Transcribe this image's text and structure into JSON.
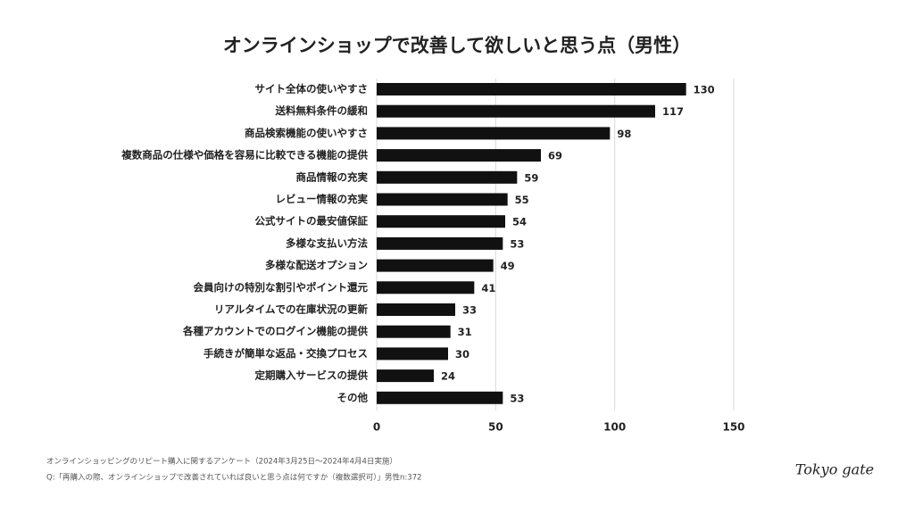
{
  "chart_data": {
    "type": "barh",
    "title": "オンラインショップで改善して欲しいと思う点（男性）",
    "categories": [
      "サイト全体の使いやすさ",
      "送料無料条件の緩和",
      "商品検索機能の使いやすさ",
      "複数商品の仕様や価格を容易に比較できる機能の提供",
      "商品情報の充実",
      "レビュー情報の充実",
      "公式サイトの最安値保証",
      "多様な支払い方法",
      "多様な配送オプション",
      "会員向けの特別な割引やポイント還元",
      "リアルタイムでの在庫状況の更新",
      "各種アカウントでのログイン機能の提供",
      "手続きが簡単な返品・交換プロセス",
      "定期購入サービスの提供",
      "その他"
    ],
    "values": [
      130,
      117,
      98,
      69,
      59,
      55,
      54,
      53,
      49,
      41,
      33,
      31,
      30,
      24,
      53
    ],
    "color": "#111111",
    "xlim": [
      0,
      150
    ],
    "xticks": [
      0,
      50,
      100,
      150
    ],
    "grid": true,
    "notes": [
      "オンラインショッピングのリピート購入に関するアンケート（2024年3月25日〜2024年4月4日実施）",
      "Q:「再購入の際、オンラインショップで改善されていれば良いと思う点は何ですか（複数選択可）」男性n:372"
    ],
    "logo": "Tokyo gate"
  }
}
